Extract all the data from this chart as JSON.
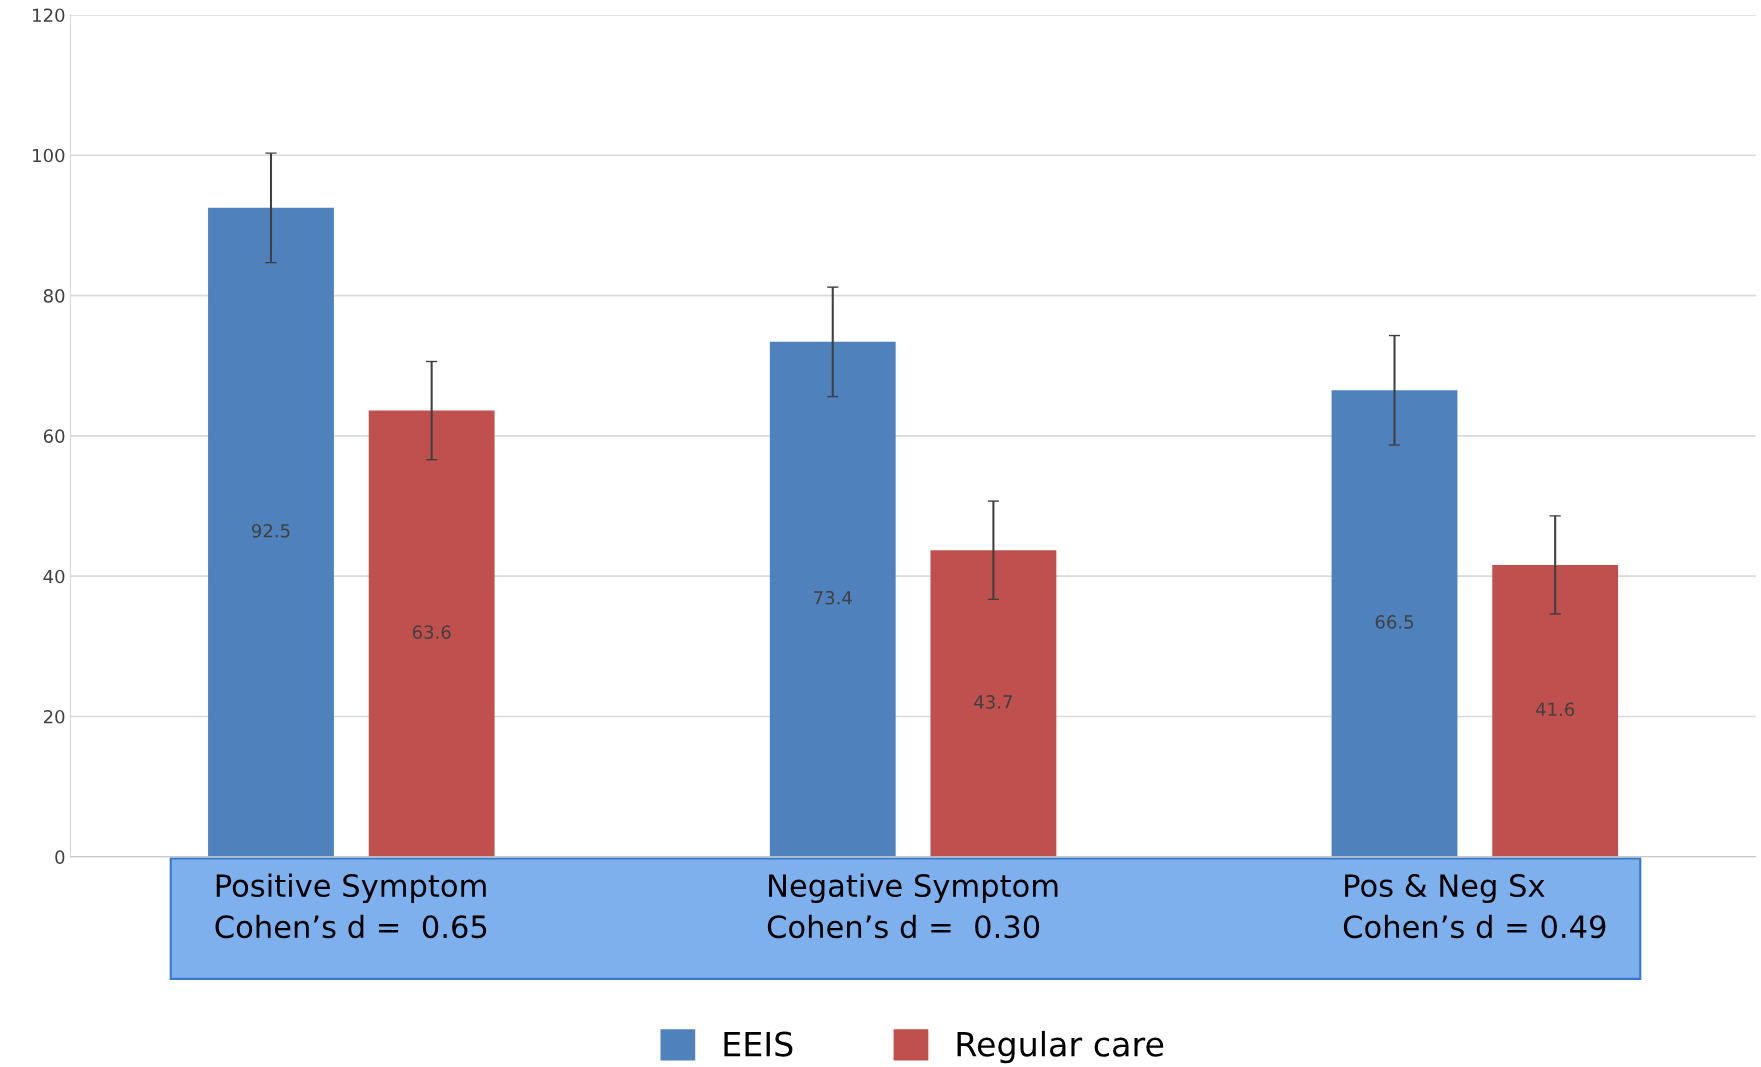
{
  "chart_data": {
    "type": "bar",
    "categories": [
      "Positive Symptom\nCohen’s d =  0.65",
      "Negative Symptom\nCohen’s d =  0.30",
      "Pos & Neg Sx\nCohen’s d = 0.49"
    ],
    "series": [
      {
        "name": "EEIS",
        "color": "#4f81bd",
        "values": [
          92.5,
          73.4,
          66.5
        ],
        "errors": [
          7.8,
          7.8,
          7.8
        ]
      },
      {
        "name": "Regular care",
        "color": "#c0504d",
        "values": [
          63.6,
          43.7,
          41.6
        ],
        "errors": [
          7,
          7,
          7
        ]
      }
    ],
    "ylim": [
      0,
      120
    ],
    "yticks": [
      0,
      20,
      40,
      60,
      80,
      100,
      120
    ],
    "grid": "y",
    "legend": "bottom",
    "data_labels": true
  }
}
